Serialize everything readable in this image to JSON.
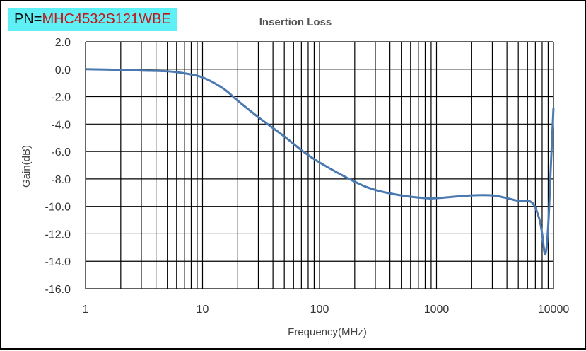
{
  "part_number": {
    "prefix": "PN=",
    "value": "MHC4532S121WBE"
  },
  "chart_data": {
    "type": "line",
    "title": "Insertion Loss",
    "xlabel": "Frequency(MHz)",
    "ylabel": "Gain(dB)",
    "xscale": "log",
    "xlim": [
      1,
      10000
    ],
    "ylim": [
      -16,
      2
    ],
    "grid": true,
    "x_tick_labels": [
      "1",
      "10",
      "100",
      "1000",
      "10000"
    ],
    "y_tick_labels": [
      "2.0",
      "0.0",
      "-2.0",
      "-4.0",
      "-6.0",
      "-8.0",
      "-10.0",
      "-12.0",
      "-14.0",
      "-16.0"
    ],
    "line_color": "#4a78b0",
    "series": [
      {
        "name": "Insertion Loss",
        "x": [
          1,
          2,
          3,
          5,
          7,
          10,
          15,
          20,
          30,
          50,
          70,
          100,
          200,
          300,
          500,
          800,
          1000,
          2000,
          3000,
          4000,
          5000,
          6500,
          7500,
          8000,
          8500,
          9000,
          9500,
          10000
        ],
        "y": [
          0,
          -0.05,
          -0.1,
          -0.15,
          -0.3,
          -0.6,
          -1.4,
          -2.3,
          -3.5,
          -4.9,
          -5.9,
          -6.8,
          -8.2,
          -8.8,
          -9.2,
          -9.4,
          -9.4,
          -9.2,
          -9.2,
          -9.4,
          -9.6,
          -9.7,
          -10.8,
          -12,
          -13.5,
          -11.5,
          -7,
          -2.8
        ]
      }
    ]
  }
}
